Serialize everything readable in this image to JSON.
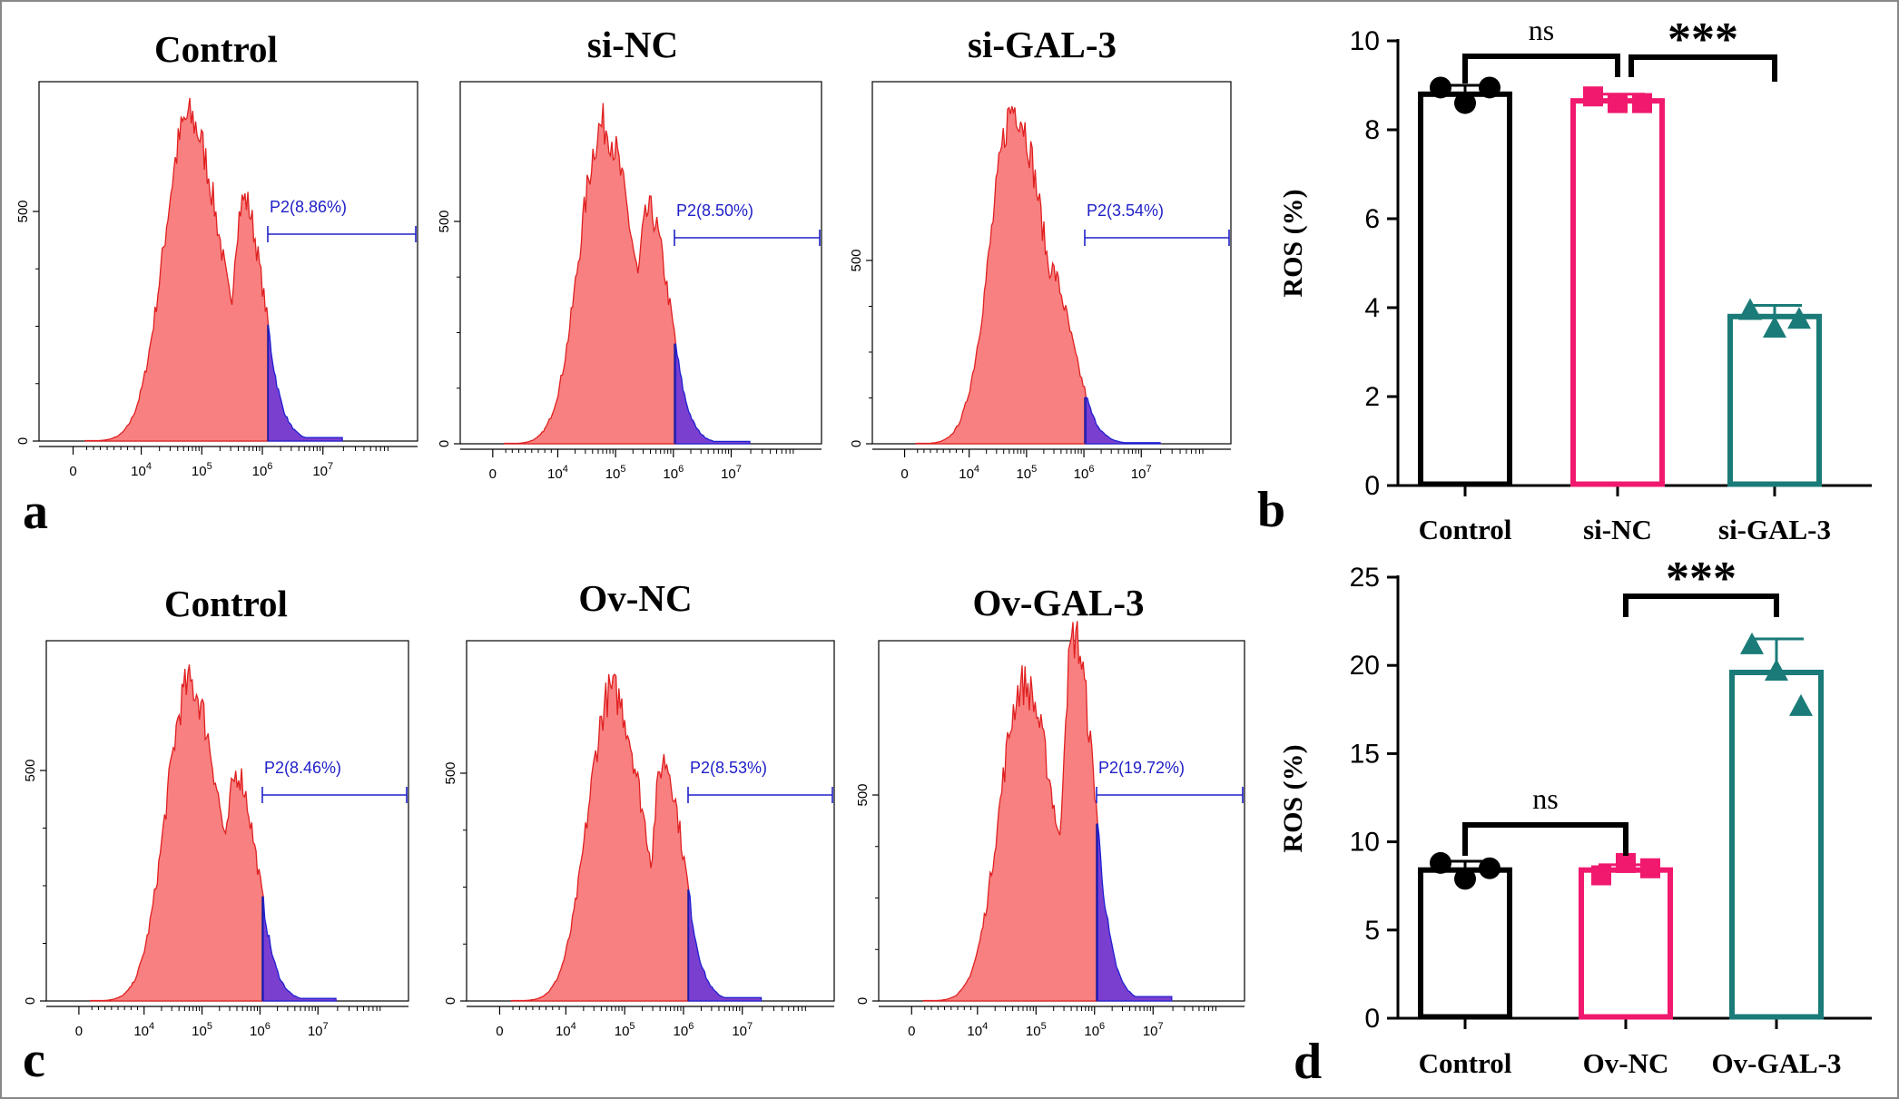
{
  "colors": {
    "fill": "#f88080",
    "fill_edge": "#e02020",
    "gate_fill": "#7b3fd0",
    "gate_edge": "#2020d0",
    "gate_line": "#2020c8",
    "black": "#000000",
    "pink": "#f0196e",
    "teal": "#1a7b78"
  },
  "panel_labels": [
    "a",
    "b",
    "c",
    "d"
  ],
  "chart_data": [
    {
      "type": "histogram",
      "title": "Control",
      "gate_label": "P2(8.86%)",
      "yticks": [
        "0",
        "500"
      ],
      "xticks": [
        "0",
        "10^4",
        "10^5",
        "10^6",
        "10^7"
      ]
    },
    {
      "type": "histogram",
      "title": "si-NC",
      "gate_label": "P2(8.50%)",
      "yticks": [
        "0",
        "500"
      ],
      "xticks": [
        "0",
        "10^4",
        "10^5",
        "10^6",
        "10^7"
      ]
    },
    {
      "type": "histogram",
      "title": "si-GAL-3",
      "gate_label": "P2(3.54%)",
      "yticks": [
        "0",
        "500"
      ],
      "xticks": [
        "0",
        "10^4",
        "10^5",
        "10^6",
        "10^7"
      ]
    },
    {
      "type": "bar",
      "ylabel": "ROS (%)",
      "ylim": [
        0,
        10
      ],
      "yticks": [
        0,
        2,
        4,
        6,
        8,
        10
      ],
      "categories": [
        "Control",
        "si-NC",
        "si-GAL-3"
      ],
      "values": [
        8.8,
        8.65,
        3.8
      ],
      "errors": [
        0.2,
        0.15,
        0.25
      ],
      "points": [
        [
          8.95,
          8.6,
          8.95
        ],
        [
          8.75,
          8.6,
          8.6
        ],
        [
          3.95,
          3.55,
          3.75
        ]
      ],
      "markers": [
        "circle",
        "square",
        "triangle"
      ],
      "significance": [
        {
          "from": 0,
          "to": 1,
          "label": "ns"
        },
        {
          "from": 1,
          "to": 2,
          "label": "***"
        }
      ]
    },
    {
      "type": "histogram",
      "title": "Control",
      "gate_label": "P2(8.46%)",
      "yticks": [
        "0",
        "500"
      ],
      "xticks": [
        "0",
        "10^4",
        "10^5",
        "10^6",
        "10^7"
      ]
    },
    {
      "type": "histogram",
      "title": "Ov-NC",
      "gate_label": "P2(8.53%)",
      "yticks": [
        "0",
        "500"
      ],
      "xticks": [
        "0",
        "10^4",
        "10^5",
        "10^6",
        "10^7"
      ]
    },
    {
      "type": "histogram",
      "title": "Ov-GAL-3",
      "gate_label": "P2(19.72%)",
      "yticks": [
        "0",
        "500"
      ],
      "xticks": [
        "0",
        "10^4",
        "10^5",
        "10^6",
        "10^7"
      ]
    },
    {
      "type": "bar",
      "ylabel": "ROS (%)",
      "ylim": [
        0,
        25
      ],
      "yticks": [
        0,
        5,
        10,
        15,
        20,
        25
      ],
      "categories": [
        "Control",
        "Ov-NC",
        "Ov-GAL-3"
      ],
      "values": [
        8.4,
        8.4,
        19.6
      ],
      "errors": [
        0.5,
        0.3,
        1.9
      ],
      "points": [
        [
          8.8,
          7.9,
          8.5
        ],
        [
          8.1,
          8.8,
          8.5
        ],
        [
          21.2,
          19.7,
          17.7
        ]
      ],
      "markers": [
        "circle",
        "square",
        "triangle"
      ],
      "significance": [
        {
          "from": 0,
          "to": 1,
          "label": "ns"
        },
        {
          "from": 1,
          "to": 2,
          "label": "***"
        }
      ]
    }
  ]
}
